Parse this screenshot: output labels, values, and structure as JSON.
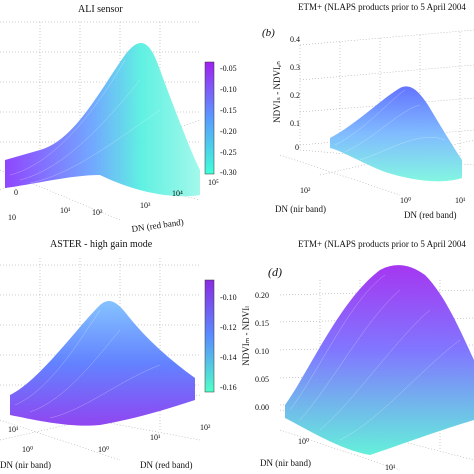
{
  "figure": {
    "panels": [
      {
        "id": "a",
        "title": "ALI sensor",
        "panel_letter": "",
        "xlabel": "DN (red band)",
        "ylabel": "",
        "zlabel": "",
        "x_ticks": [
          "10¹",
          "10²",
          "10³",
          "10⁴",
          "10⁵"
        ],
        "y_ticks": [
          "0",
          "10"
        ],
        "z_ticks": [],
        "colorbar": {
          "ticks": [
            "-0.05",
            "-0.10",
            "-0.15",
            "-0.20",
            "-0.25",
            "-0.30"
          ],
          "top_color": "#a020f0",
          "bottom_color": "#40ffd8"
        }
      },
      {
        "id": "b",
        "title": "ETM+ (NLAPS products prior to 5 April 2004",
        "panel_letter": "(b)",
        "xlabel": "DN (red band)",
        "ylabel": "DN (nir band)",
        "zlabel": "NDVIₛ - NDVIₑₙ",
        "x_ticks": [
          "10⁰",
          "10¹"
        ],
        "y_ticks": [
          "10²"
        ],
        "z_ticks": [
          "0.4",
          "0.3",
          "0.2",
          "0.1",
          "0"
        ],
        "colorbar": null
      },
      {
        "id": "c",
        "title": "ASTER - high gain mode",
        "panel_letter": "",
        "xlabel": "DN (red band)",
        "ylabel": "DN (nir band)",
        "zlabel": "",
        "x_ticks": [
          "10⁰",
          "10¹",
          "10²"
        ],
        "y_ticks": [
          "10¹",
          "10⁰"
        ],
        "z_ticks": [],
        "colorbar": {
          "ticks": [
            "-0.10",
            "-0.12",
            "-0.14",
            "-0.16"
          ],
          "top_color": "#8a2be2",
          "bottom_color": "#50ffc8",
          "axis_label": "NDVIₘ - NDVIₗ"
        }
      },
      {
        "id": "d",
        "title": "ETM+ (NLAPS products prior to 5 April 2004",
        "panel_letter": "(d)",
        "xlabel": "",
        "ylabel": "DN (nir band)",
        "zlabel": "",
        "x_ticks": [
          "10¹"
        ],
        "y_ticks": [
          "10⁰"
        ],
        "z_ticks": [
          "0.20",
          "0.15",
          "0.10",
          "0.05",
          "0.00"
        ],
        "colorbar": null
      }
    ]
  },
  "chart_data": [
    {
      "type": "area",
      "title": "ALI sensor",
      "xlabel": "DN (red band)",
      "x_scale": "log",
      "xlim": [
        10,
        100000
      ],
      "zlim": [
        -0.3,
        -0.05
      ],
      "surface": "bell-shaped 3D surface",
      "grid": true
    },
    {
      "type": "area",
      "title": "ETM+ (NLAPS products prior to 5 April 2004",
      "xlabel": "DN (red band)",
      "ylabel": "DN (nir band)",
      "x_scale": "log",
      "zlim": [
        0,
        0.4
      ],
      "surface": "bell-shaped 3D surface",
      "grid": true
    },
    {
      "type": "area",
      "title": "ASTER - high gain mode",
      "xlabel": "DN (red band)",
      "ylabel": "DN (nir band)",
      "x_scale": "log",
      "zlim": [
        -0.16,
        -0.1
      ],
      "surface": "bell-shaped 3D surface",
      "grid": true
    },
    {
      "type": "area",
      "title": "ETM+ (NLAPS products prior to 5 April 2004",
      "ylabel": "DN (nir band)",
      "x_scale": "log",
      "zlim": [
        0,
        0.2
      ],
      "surface": "bell-shaped 3D surface",
      "grid": true
    }
  ]
}
